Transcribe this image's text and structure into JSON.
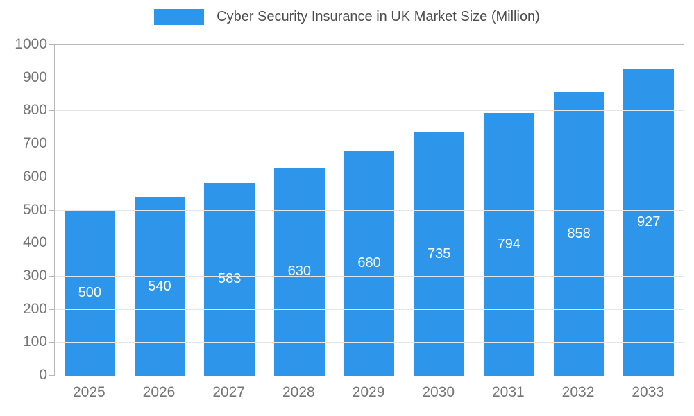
{
  "chart_data": {
    "type": "bar",
    "title": "Cyber Security Insurance in UK Market Size (Million)",
    "categories": [
      "2025",
      "2026",
      "2027",
      "2028",
      "2029",
      "2030",
      "2031",
      "2032",
      "2033"
    ],
    "values": [
      500,
      540,
      583,
      630,
      680,
      735,
      794,
      858,
      927
    ],
    "xlabel": "",
    "ylabel": "",
    "ylim": [
      0,
      1000
    ],
    "ytick_step": 100,
    "grid": true,
    "legend_position": "top",
    "value_labels": "inside-center",
    "colors": {
      "bar": "#2E96EA",
      "value_label": "#ffffff",
      "axis_text": "#757575",
      "title_text": "#4d4d4d",
      "gridline": "#e5e5e5",
      "axis_line": "#b6b6b6"
    }
  }
}
